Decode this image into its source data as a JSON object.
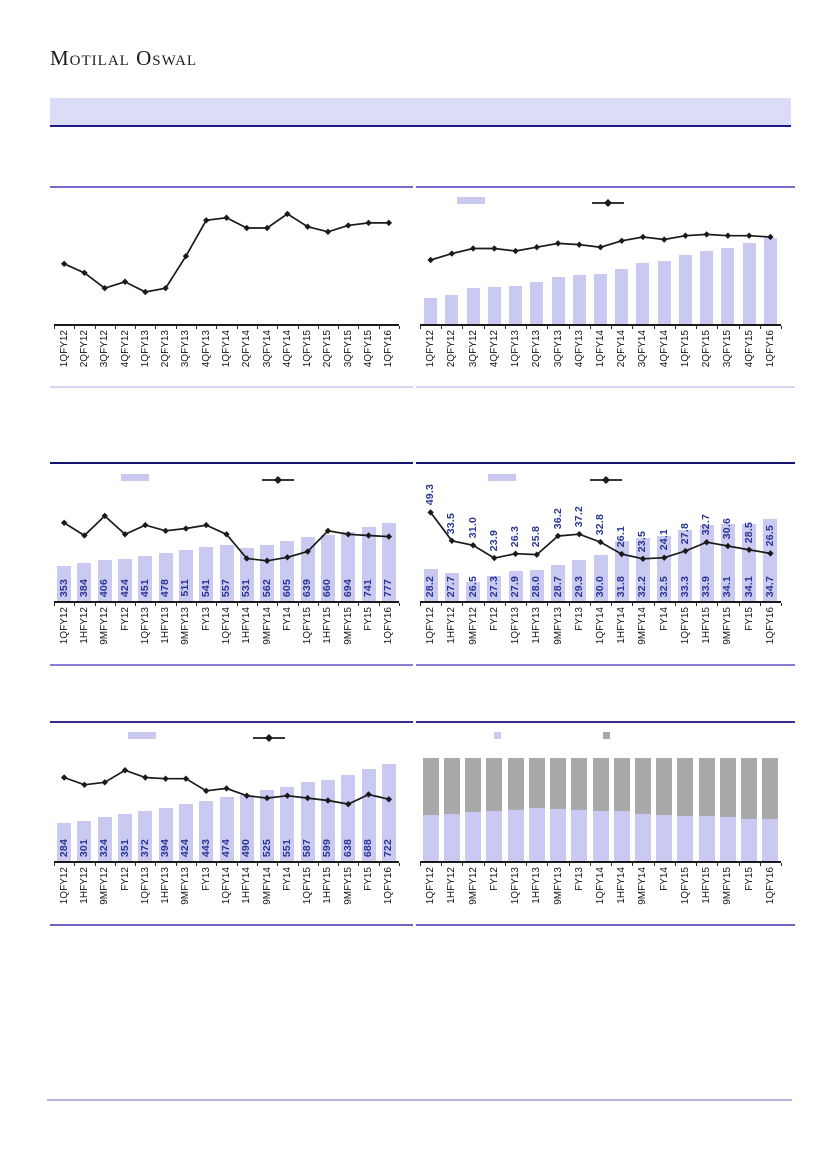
{
  "page": {
    "logo": "Motilal Oswal"
  },
  "banner": {
    "text": ""
  },
  "colors": {
    "bar_lavender": "#c9c9f1",
    "stack_gray": "#a9a9a9",
    "line_black": "#1a1a1a",
    "value_label_navy": "#283593",
    "banner_bg": "#dcdcf8",
    "banner_border": "#1a1a8c",
    "row1_top_border": "#7a68cc",
    "row1_divider": "#d8d4f2",
    "row2_top_border": "#12126e",
    "row2_divider": "#8a7ad0",
    "row3_top_border": "#332e90",
    "row3_divider": "#6f63c2",
    "footer_line": "#bcb2e2"
  },
  "chart_data": [
    {
      "type": "line",
      "panel": "top-left",
      "title": "",
      "categories": [
        "1QFY12",
        "2QFY12",
        "3QFY12",
        "4QFY12",
        "1QFY13",
        "2QFY13",
        "3QFY13",
        "4QFY13",
        "1QFY14",
        "2QFY14",
        "3QFY14",
        "4QFY14",
        "1QFY15",
        "2QFY15",
        "3QFY15",
        "4QFY15",
        "1QFY16"
      ],
      "tick_label_rotation_deg": 90,
      "legend": {
        "visible": false
      },
      "line": {
        "values": [
          47,
          40,
          28,
          33,
          25,
          28,
          53,
          81,
          83,
          75,
          75,
          86,
          76,
          72,
          77,
          79,
          79
        ],
        "ylim": [
          0,
          100
        ],
        "estimated": true,
        "note": "no axis or data labels visible; values are relative estimates in % of plot height",
        "labels": null
      }
    },
    {
      "type": "bar+line",
      "panel": "top-right",
      "title": "",
      "categories": [
        "1QFY12",
        "2QFY12",
        "3QFY12",
        "4QFY12",
        "1QFY13",
        "2QFY13",
        "3QFY13",
        "4QFY13",
        "1QFY14",
        "2QFY14",
        "3QFY14",
        "4QFY14",
        "1QFY15",
        "2QFY15",
        "3QFY15",
        "4QFY15",
        "1QFY16"
      ],
      "tick_label_rotation_deg": 90,
      "legend": {
        "visible": true,
        "entries": [
          "bar-series",
          "line-series"
        ],
        "labels_visible": false
      },
      "bar": {
        "values": [
          20,
          23,
          28,
          29,
          30,
          33,
          37,
          38,
          39,
          43,
          48,
          49,
          54,
          57,
          59,
          63,
          67
        ],
        "ylim": [
          0,
          100
        ],
        "estimated": true,
        "note": "no axis or data labels visible; values are relative estimates in % of plot height",
        "labels": null
      },
      "line": {
        "values": [
          50,
          55,
          59,
          59,
          57,
          60,
          63,
          62,
          60,
          65,
          68,
          66,
          69,
          70,
          69,
          69,
          68
        ],
        "ylim": [
          0,
          100
        ],
        "estimated": true,
        "labels": null
      }
    },
    {
      "type": "bar+line",
      "panel": "middle-left",
      "title": "",
      "categories": [
        "1QFY12",
        "1HFY12",
        "9MFY12",
        "FY12",
        "1QFY13",
        "1HFY13",
        "9MFY13",
        "FY13",
        "1QFY14",
        "1HFY14",
        "9MFY14",
        "FY14",
        "1QFY15",
        "1HFY15",
        "9MFY15",
        "FY15",
        "1QFY16"
      ],
      "tick_label_rotation_deg": 90,
      "legend": {
        "visible": true,
        "entries": [
          "bar-series",
          "line-series"
        ],
        "labels_visible": false
      },
      "bar": {
        "values": [
          353,
          384,
          406,
          424,
          451,
          478,
          511,
          541,
          557,
          531,
          562,
          605,
          639,
          660,
          694,
          741,
          777
        ],
        "ylim": [
          0,
          1150
        ],
        "estimated": false,
        "labels": [
          "353",
          "384",
          "406",
          "424",
          "451",
          "478",
          "511",
          "541",
          "557",
          "531",
          "562",
          "605",
          "639",
          "660",
          "694",
          "741",
          "777"
        ]
      },
      "line": {
        "values": [
          68,
          57,
          74,
          58,
          66,
          61,
          63,
          66,
          58,
          37,
          35,
          38,
          43,
          61,
          58,
          57,
          56
        ],
        "ylim": [
          0,
          100
        ],
        "estimated": true,
        "note": "line has no data labels; values are relative estimates in % of plot height",
        "labels": null
      }
    },
    {
      "type": "bar+line",
      "panel": "middle-right",
      "title": "",
      "categories": [
        "1QFY12",
        "1HFY12",
        "9MFY12",
        "FY12",
        "1QFY13",
        "1HFY13",
        "9MFY13",
        "FY13",
        "1QFY14",
        "1HFY14",
        "9MFY14",
        "FY14",
        "1QFY15",
        "1HFY15",
        "9MFY15",
        "FY15",
        "1QFY16"
      ],
      "tick_label_rotation_deg": 90,
      "legend": {
        "visible": true,
        "entries": [
          "bar-series",
          "line-series"
        ],
        "labels_visible": false
      },
      "bar": {
        "values": [
          28.2,
          27.7,
          26.5,
          27.3,
          27.9,
          28.0,
          28.7,
          29.3,
          30.0,
          31.8,
          32.2,
          32.5,
          33.3,
          33.9,
          34.1,
          34.1,
          34.7
        ],
        "ylim": [
          24,
          39
        ],
        "estimated": false,
        "labels": [
          "28.2",
          "27.7",
          "26.5",
          "27.3",
          "27.9",
          "28.0",
          "28.7",
          "29.3",
          "30.0",
          "31.8",
          "32.2",
          "32.5",
          "33.3",
          "33.9",
          "34.1",
          "34.1",
          "34.7"
        ]
      },
      "line": {
        "values": [
          49.3,
          33.5,
          31.0,
          23.9,
          26.3,
          25.8,
          36.2,
          37.2,
          32.8,
          26.1,
          23.5,
          24.1,
          27.8,
          32.7,
          30.6,
          28.5,
          26.5
        ],
        "ylim": [
          0,
          64
        ],
        "estimated": false,
        "labels": [
          "49.3",
          "33.5",
          "31.0",
          "23.9",
          "26.3",
          "25.8",
          "36.2",
          "37.2",
          "32.8",
          "26.1",
          "23.5",
          "24.1",
          "27.8",
          "32.7",
          "30.6",
          "28.5",
          "26.5"
        ]
      }
    },
    {
      "type": "bar+line",
      "panel": "bottom-left",
      "title": "",
      "categories": [
        "1QFY12",
        "1HFY12",
        "9MFY12",
        "FY12",
        "1QFY13",
        "1HFY13",
        "9MFY13",
        "FY13",
        "1QFY14",
        "1HFY14",
        "9MFY14",
        "FY14",
        "1QFY15",
        "1HFY15",
        "9MFY15",
        "FY15",
        "1QFY16"
      ],
      "tick_label_rotation_deg": 90,
      "legend": {
        "visible": true,
        "entries": [
          "bar-series",
          "line-series"
        ],
        "labels_visible": false
      },
      "bar": {
        "values": [
          284,
          301,
          324,
          351,
          372,
          394,
          424,
          443,
          474,
          490,
          525,
          551,
          587,
          599,
          638,
          688,
          722
        ],
        "ylim": [
          0,
          900
        ],
        "estimated": false,
        "labels": [
          "284",
          "301",
          "324",
          "351",
          "372",
          "394",
          "424",
          "443",
          "474",
          "490",
          "525",
          "551",
          "587",
          "599",
          "638",
          "688",
          "722"
        ]
      },
      "line": {
        "values": [
          69,
          63,
          65,
          75,
          69,
          68,
          68,
          58,
          60,
          54,
          52,
          54,
          52,
          50,
          47,
          55,
          51
        ],
        "ylim": [
          0,
          100
        ],
        "estimated": true,
        "note": "line has no data labels; values are relative estimates in % of plot height",
        "labels": null
      }
    },
    {
      "type": "stacked-bar-100",
      "panel": "bottom-right",
      "title": "",
      "categories": [
        "1QFY12",
        "1HFY12",
        "9MFY12",
        "FY12",
        "1QFY13",
        "1HFY13",
        "9MFY13",
        "FY13",
        "1QFY14",
        "1HFY14",
        "9MFY14",
        "FY14",
        "1QFY15",
        "1HFY15",
        "9MFY15",
        "FY15",
        "1QFY16"
      ],
      "tick_label_rotation_deg": 90,
      "legend": {
        "visible": true,
        "entries": [
          "lavender-series",
          "gray-series"
        ],
        "labels_visible": false
      },
      "stack": {
        "estimated": true,
        "note": "100% stacked bars with no data labels; split estimated from pixels",
        "series": [
          {
            "name": "lower-lavender",
            "color_key": "bar_lavender",
            "values_pct": [
              44.5,
              45.8,
              47.4,
              48.7,
              49.7,
              51.3,
              50.6,
              49.7,
              49.0,
              48.7,
              46.1,
              44.8,
              43.8,
              43.8,
              42.9,
              40.3,
              41.2
            ]
          },
          {
            "name": "upper-gray",
            "color_key": "stack_gray",
            "values_pct": [
              55.5,
              54.2,
              52.6,
              51.3,
              50.3,
              48.7,
              49.4,
              50.3,
              51.0,
              51.3,
              53.9,
              55.2,
              56.2,
              56.2,
              57.1,
              59.7,
              58.8
            ]
          }
        ]
      }
    }
  ]
}
